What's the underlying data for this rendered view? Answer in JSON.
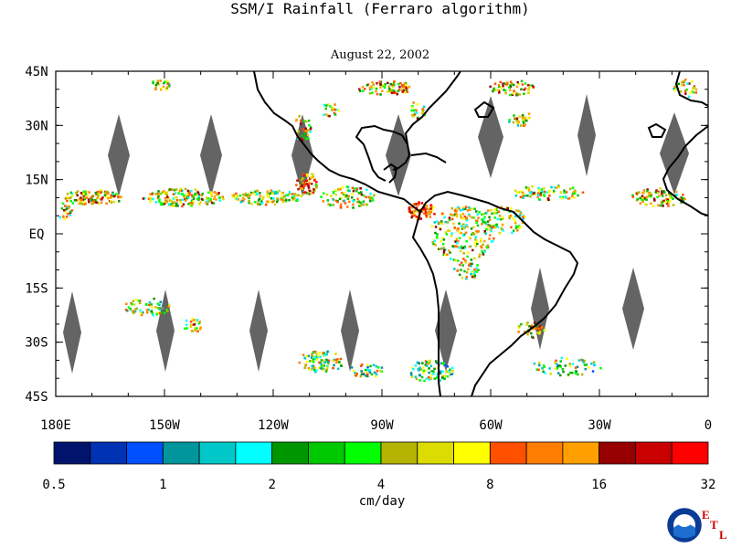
{
  "title": "SSM/I Rainfall (Ferraro algorithm)",
  "subtitle": "August 22, 2002",
  "lat_labels": [
    "45N",
    "30N",
    "15N",
    "EQ",
    "15S",
    "30S",
    "45S"
  ],
  "lat_values": [
    45,
    30,
    15,
    0,
    -15,
    -30,
    -45
  ],
  "lon_labels": [
    "180E",
    "150W",
    "120W",
    "90W",
    "60W",
    "30W",
    "0"
  ],
  "lon_values": [
    -180,
    -150,
    -120,
    -90,
    -60,
    -30,
    0
  ],
  "colorbar": {
    "labels": [
      "0.5",
      "1",
      "2",
      "4",
      "8",
      "16",
      "32"
    ],
    "unit": "cm/day",
    "colors": [
      "#00146e",
      "#0032b4",
      "#0050ff",
      "#00969b",
      "#00c8c8",
      "#00ffff",
      "#009600",
      "#00c800",
      "#00ff00",
      "#b4b400",
      "#dcdc00",
      "#ffff00",
      "#ff5000",
      "#ff7d00",
      "#ffa000",
      "#960000",
      "#c80000",
      "#ff0000"
    ]
  },
  "logo": {
    "name": "NOAA",
    "letters": [
      "E",
      "T",
      "L"
    ]
  },
  "map": {
    "lon_range": [
      -180,
      0
    ],
    "lat_range": [
      -45,
      45
    ],
    "gap_color": "#646464"
  }
}
